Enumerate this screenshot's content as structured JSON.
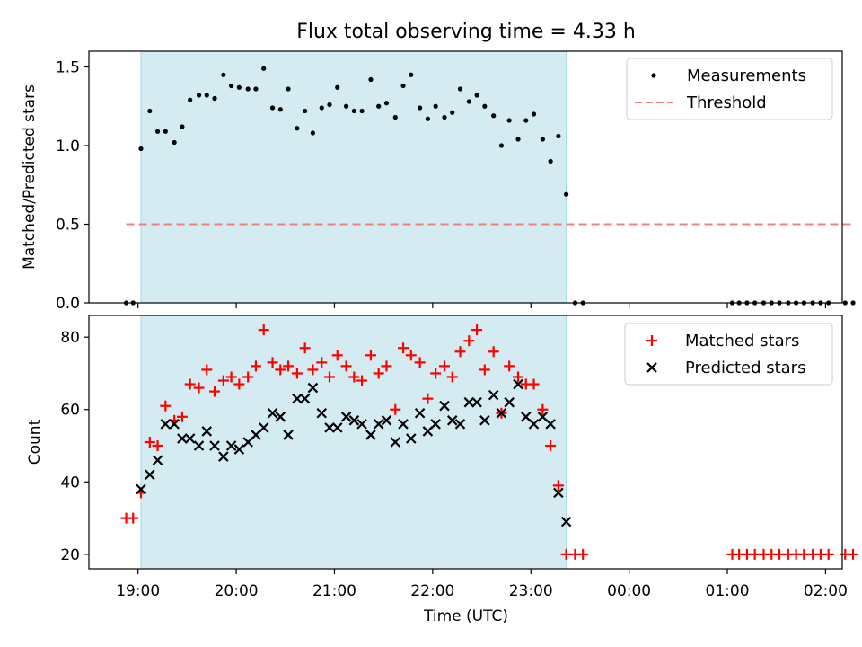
{
  "title": "Flux total observing time = 4.33 h",
  "xlabel": "Time (UTC)",
  "x_unit": "hours since 19:00 UTC",
  "xlim": [
    -0.5,
    7.17
  ],
  "xticks": [
    {
      "value": 0,
      "label": "19:00"
    },
    {
      "value": 1,
      "label": "20:00"
    },
    {
      "value": 2,
      "label": "21:00"
    },
    {
      "value": 3,
      "label": "22:00"
    },
    {
      "value": 4,
      "label": "23:00"
    },
    {
      "value": 5,
      "label": "00:00"
    },
    {
      "value": 6,
      "label": "01:00"
    },
    {
      "value": 7,
      "label": "02:00"
    }
  ],
  "shaded_interval": [
    0.03,
    4.36
  ],
  "colors": {
    "shade": "#d4ebf1",
    "shade_edge": "#a9d5e2",
    "measure": "#000000",
    "threshold": "#f08080",
    "matched": "#ff0000",
    "predicted": "#000000"
  },
  "chart_data": [
    {
      "type": "scatter",
      "ylabel": "Matched/Predicted stars",
      "ylim": [
        0,
        1.6
      ],
      "yticks": [
        0.0,
        0.5,
        1.0,
        1.5
      ],
      "ytick_labels": [
        "0.0",
        "0.5",
        "1.0",
        "1.5"
      ],
      "legend_position": "top-right",
      "series": [
        {
          "name": "Measurements",
          "points": [
            [
              -0.12,
              0.0
            ],
            [
              -0.05,
              0.0
            ],
            [
              0.03,
              0.98
            ],
            [
              0.12,
              1.22
            ],
            [
              0.2,
              1.09
            ],
            [
              0.28,
              1.09
            ],
            [
              0.37,
              1.02
            ],
            [
              0.45,
              1.12
            ],
            [
              0.53,
              1.29
            ],
            [
              0.62,
              1.32
            ],
            [
              0.7,
              1.32
            ],
            [
              0.78,
              1.3
            ],
            [
              0.87,
              1.45
            ],
            [
              0.95,
              1.38
            ],
            [
              1.03,
              1.37
            ],
            [
              1.12,
              1.36
            ],
            [
              1.2,
              1.36
            ],
            [
              1.28,
              1.49
            ],
            [
              1.37,
              1.24
            ],
            [
              1.45,
              1.23
            ],
            [
              1.53,
              1.36
            ],
            [
              1.62,
              1.11
            ],
            [
              1.7,
              1.22
            ],
            [
              1.78,
              1.08
            ],
            [
              1.87,
              1.24
            ],
            [
              1.95,
              1.26
            ],
            [
              2.03,
              1.37
            ],
            [
              2.12,
              1.25
            ],
            [
              2.2,
              1.22
            ],
            [
              2.28,
              1.22
            ],
            [
              2.37,
              1.42
            ],
            [
              2.45,
              1.25
            ],
            [
              2.53,
              1.27
            ],
            [
              2.62,
              1.18
            ],
            [
              2.7,
              1.38
            ],
            [
              2.78,
              1.45
            ],
            [
              2.87,
              1.24
            ],
            [
              2.95,
              1.17
            ],
            [
              3.03,
              1.25
            ],
            [
              3.12,
              1.18
            ],
            [
              3.2,
              1.21
            ],
            [
              3.28,
              1.36
            ],
            [
              3.37,
              1.28
            ],
            [
              3.45,
              1.32
            ],
            [
              3.53,
              1.25
            ],
            [
              3.62,
              1.19
            ],
            [
              3.7,
              1.0
            ],
            [
              3.78,
              1.16
            ],
            [
              3.87,
              1.04
            ],
            [
              3.95,
              1.16
            ],
            [
              4.03,
              1.2
            ],
            [
              4.12,
              1.04
            ],
            [
              4.2,
              0.9
            ],
            [
              4.28,
              1.06
            ],
            [
              4.36,
              0.69
            ],
            [
              4.45,
              0.0
            ],
            [
              4.53,
              0.0
            ],
            [
              6.05,
              0.0
            ],
            [
              6.12,
              0.0
            ],
            [
              6.2,
              0.0
            ],
            [
              6.28,
              0.0
            ],
            [
              6.37,
              0.0
            ],
            [
              6.45,
              0.0
            ],
            [
              6.53,
              0.0
            ],
            [
              6.62,
              0.0
            ],
            [
              6.7,
              0.0
            ],
            [
              6.78,
              0.0
            ],
            [
              6.87,
              0.0
            ],
            [
              6.95,
              0.0
            ],
            [
              7.03,
              0.0
            ],
            [
              7.2,
              0.0
            ],
            [
              7.28,
              0.0
            ]
          ]
        },
        {
          "name": "Threshold",
          "style": "dashed-line",
          "x": [
            -0.12,
            7.28
          ],
          "y": [
            0.5,
            0.5
          ]
        }
      ]
    },
    {
      "type": "scatter",
      "ylabel": "Count",
      "ylim": [
        16,
        86
      ],
      "yticks": [
        20,
        40,
        60,
        80
      ],
      "ytick_labels": [
        "20",
        "40",
        "60",
        "80"
      ],
      "legend_position": "top-right",
      "series": [
        {
          "name": "Matched stars",
          "marker": "plus",
          "points": [
            [
              -0.12,
              30
            ],
            [
              -0.05,
              30
            ],
            [
              0.03,
              37
            ],
            [
              0.12,
              51
            ],
            [
              0.2,
              50
            ],
            [
              0.28,
              61
            ],
            [
              0.37,
              57
            ],
            [
              0.45,
              58
            ],
            [
              0.53,
              67
            ],
            [
              0.62,
              66
            ],
            [
              0.7,
              71
            ],
            [
              0.78,
              65
            ],
            [
              0.87,
              68
            ],
            [
              0.95,
              69
            ],
            [
              1.03,
              67
            ],
            [
              1.12,
              69
            ],
            [
              1.2,
              72
            ],
            [
              1.28,
              82
            ],
            [
              1.37,
              73
            ],
            [
              1.45,
              71
            ],
            [
              1.53,
              72
            ],
            [
              1.62,
              70
            ],
            [
              1.7,
              77
            ],
            [
              1.78,
              71
            ],
            [
              1.87,
              73
            ],
            [
              1.95,
              69
            ],
            [
              2.03,
              75
            ],
            [
              2.12,
              72
            ],
            [
              2.2,
              69
            ],
            [
              2.28,
              68
            ],
            [
              2.37,
              75
            ],
            [
              2.45,
              70
            ],
            [
              2.53,
              72
            ],
            [
              2.62,
              60
            ],
            [
              2.7,
              77
            ],
            [
              2.78,
              75
            ],
            [
              2.87,
              73
            ],
            [
              2.95,
              63
            ],
            [
              3.03,
              70
            ],
            [
              3.12,
              72
            ],
            [
              3.2,
              69
            ],
            [
              3.28,
              76
            ],
            [
              3.37,
              79
            ],
            [
              3.45,
              82
            ],
            [
              3.53,
              71
            ],
            [
              3.62,
              76
            ],
            [
              3.7,
              59
            ],
            [
              3.78,
              72
            ],
            [
              3.87,
              69
            ],
            [
              3.95,
              67
            ],
            [
              4.03,
              67
            ],
            [
              4.12,
              60
            ],
            [
              4.2,
              50
            ],
            [
              4.28,
              39
            ],
            [
              4.36,
              20
            ],
            [
              4.45,
              20
            ],
            [
              4.53,
              20
            ],
            [
              6.05,
              20
            ],
            [
              6.12,
              20
            ],
            [
              6.2,
              20
            ],
            [
              6.28,
              20
            ],
            [
              6.37,
              20
            ],
            [
              6.45,
              20
            ],
            [
              6.53,
              20
            ],
            [
              6.62,
              20
            ],
            [
              6.7,
              20
            ],
            [
              6.78,
              20
            ],
            [
              6.87,
              20
            ],
            [
              6.95,
              20
            ],
            [
              7.03,
              20
            ],
            [
              7.2,
              20
            ],
            [
              7.28,
              20
            ]
          ]
        },
        {
          "name": "Predicted stars",
          "marker": "x",
          "points": [
            [
              0.03,
              38
            ],
            [
              0.12,
              42
            ],
            [
              0.2,
              46
            ],
            [
              0.28,
              56
            ],
            [
              0.37,
              56
            ],
            [
              0.45,
              52
            ],
            [
              0.53,
              52
            ],
            [
              0.62,
              50
            ],
            [
              0.7,
              54
            ],
            [
              0.78,
              50
            ],
            [
              0.87,
              47
            ],
            [
              0.95,
              50
            ],
            [
              1.03,
              49
            ],
            [
              1.12,
              51
            ],
            [
              1.2,
              53
            ],
            [
              1.28,
              55
            ],
            [
              1.37,
              59
            ],
            [
              1.45,
              58
            ],
            [
              1.53,
              53
            ],
            [
              1.62,
              63
            ],
            [
              1.7,
              63
            ],
            [
              1.78,
              66
            ],
            [
              1.87,
              59
            ],
            [
              1.95,
              55
            ],
            [
              2.03,
              55
            ],
            [
              2.12,
              58
            ],
            [
              2.2,
              57
            ],
            [
              2.28,
              56
            ],
            [
              2.37,
              53
            ],
            [
              2.45,
              56
            ],
            [
              2.53,
              57
            ],
            [
              2.62,
              51
            ],
            [
              2.7,
              56
            ],
            [
              2.78,
              52
            ],
            [
              2.87,
              59
            ],
            [
              2.95,
              54
            ],
            [
              3.03,
              56
            ],
            [
              3.12,
              61
            ],
            [
              3.2,
              57
            ],
            [
              3.28,
              56
            ],
            [
              3.37,
              62
            ],
            [
              3.45,
              62
            ],
            [
              3.53,
              57
            ],
            [
              3.62,
              64
            ],
            [
              3.7,
              59
            ],
            [
              3.78,
              62
            ],
            [
              3.87,
              67
            ],
            [
              3.95,
              58
            ],
            [
              4.03,
              56
            ],
            [
              4.12,
              58
            ],
            [
              4.2,
              56
            ],
            [
              4.28,
              37
            ],
            [
              4.36,
              29
            ]
          ]
        }
      ]
    }
  ]
}
